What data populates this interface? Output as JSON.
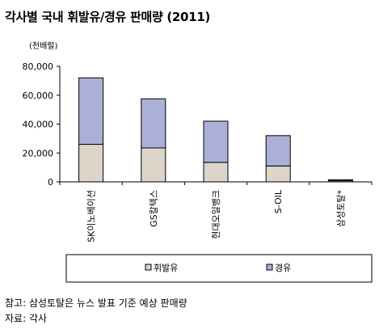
{
  "title": "각사별 국내 휘발유/경유 판매량 (2011)",
  "chart_data": {
    "type": "bar",
    "stacked": true,
    "unit_label": "(천배럴)",
    "categories": [
      "SK이노베이션",
      "GS칼텍스",
      "현대오일뱅크",
      "S-OIL",
      "삼성토탈*"
    ],
    "series": [
      {
        "name": "휘발유",
        "color": "#ddd5c8",
        "values": [
          26000,
          23500,
          13500,
          11000,
          800
        ]
      },
      {
        "name": "경유",
        "color": "#aab0d8",
        "values": [
          46000,
          34000,
          28500,
          21000,
          700
        ]
      }
    ],
    "yticks": [
      "0",
      "20,000",
      "40,000",
      "60,000",
      "80,000"
    ],
    "ylim": [
      0,
      80000
    ],
    "grid": false,
    "legend_position": "bottom"
  },
  "notes": [
    "참고: 삼성토탈은 뉴스 발표 기준 예상 판매량",
    "자료: 각사"
  ]
}
